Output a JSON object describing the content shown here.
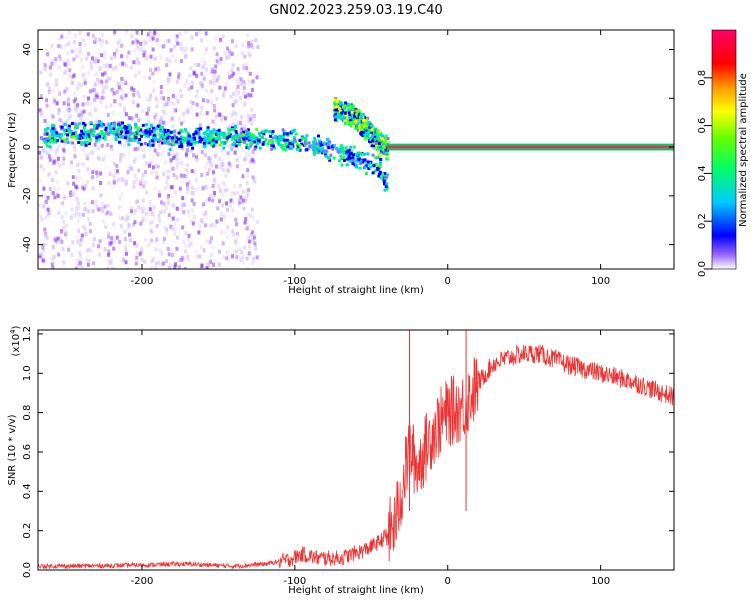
{
  "page_title": "GN02.2023.259.03.19.C40",
  "chart_data": [
    {
      "type": "heatmap",
      "xlabel": "Height of straight line (km)",
      "ylabel": "Frequency (Hz)",
      "xlim": [
        -268,
        148
      ],
      "ylim": [
        -50,
        48
      ],
      "xticks": [
        -200,
        -100,
        0,
        100
      ],
      "xtick_labels": [
        "-200",
        "-100",
        "0",
        "100"
      ],
      "yticks": [
        -40,
        -20,
        0,
        20,
        40
      ],
      "ytick_labels": [
        "-40",
        "-20",
        "0",
        "20",
        "40"
      ],
      "colorbar": {
        "label": "Normalized spectral amplitude",
        "range": [
          0,
          1
        ],
        "ticks": [
          0,
          0.2,
          0.4,
          0.6,
          0.8
        ],
        "tick_labels": [
          "0.0",
          "0.2",
          "0.4",
          "0.6",
          "0.8"
        ]
      },
      "features": [
        {
          "kind": "diffuse_scatter",
          "x_range": [
            -268,
            -125
          ],
          "y_range": [
            -50,
            48
          ],
          "amplitude": 0.08
        },
        {
          "kind": "band",
          "x": [
            -265,
            -220,
            -180,
            -140,
            -100,
            -80,
            -60,
            -45,
            -40
          ],
          "y": [
            5,
            7,
            4,
            5,
            3,
            0,
            -4,
            -8,
            -16
          ],
          "amplitude": 0.3
        },
        {
          "kind": "branch",
          "x": [
            -75,
            -62,
            -52,
            -45,
            -40
          ],
          "y": [
            16,
            13,
            7,
            2,
            0
          ],
          "amplitude": 0.4
        },
        {
          "kind": "line",
          "x": [
            -40,
            -20,
            0,
            148
          ],
          "y": [
            0,
            0,
            0,
            0
          ],
          "amplitude": 0.95
        }
      ]
    },
    {
      "type": "line",
      "xlabel": "Height of straight line (km)",
      "ylabel": "SNR (10 * v/v)",
      "y_multiplier_label": "(x10",
      "y_multiplier_exponent": "4",
      "y_multiplier_close": ")",
      "xlim": [
        -268,
        148
      ],
      "ylim": [
        0,
        1.22
      ],
      "xticks": [
        -200,
        -100,
        0,
        100
      ],
      "xtick_labels": [
        "-200",
        "-100",
        "0",
        "100"
      ],
      "yticks": [
        0,
        0.2,
        0.4,
        0.6,
        0.8,
        1.0,
        1.2
      ],
      "ytick_labels": [
        "0.0",
        "0.2",
        "0.4",
        "0.6",
        "0.8",
        "1.0",
        "1.2"
      ],
      "series": [
        {
          "color": "#ee3333",
          "x": [
            -268,
            -240,
            -200,
            -180,
            -170,
            -140,
            -120,
            -105,
            -95,
            -85,
            -70,
            -55,
            -45,
            -35,
            -30,
            -25,
            -20,
            -10,
            0,
            10,
            20,
            30,
            40,
            50,
            60,
            70,
            80,
            90,
            100,
            110,
            120,
            130,
            140,
            148
          ],
          "y": [
            0.02,
            0.02,
            0.025,
            0.03,
            0.03,
            0.02,
            0.03,
            0.05,
            0.08,
            0.06,
            0.06,
            0.1,
            0.14,
            0.22,
            0.4,
            0.62,
            0.52,
            0.7,
            0.8,
            0.83,
            0.95,
            1.05,
            1.08,
            1.1,
            1.1,
            1.07,
            1.04,
            1.02,
            1.0,
            0.98,
            0.96,
            0.93,
            0.9,
            0.88
          ]
        }
      ],
      "spikes": [
        {
          "x": -25,
          "y": 1.22
        },
        {
          "x": 12,
          "y": 1.22
        }
      ]
    }
  ]
}
